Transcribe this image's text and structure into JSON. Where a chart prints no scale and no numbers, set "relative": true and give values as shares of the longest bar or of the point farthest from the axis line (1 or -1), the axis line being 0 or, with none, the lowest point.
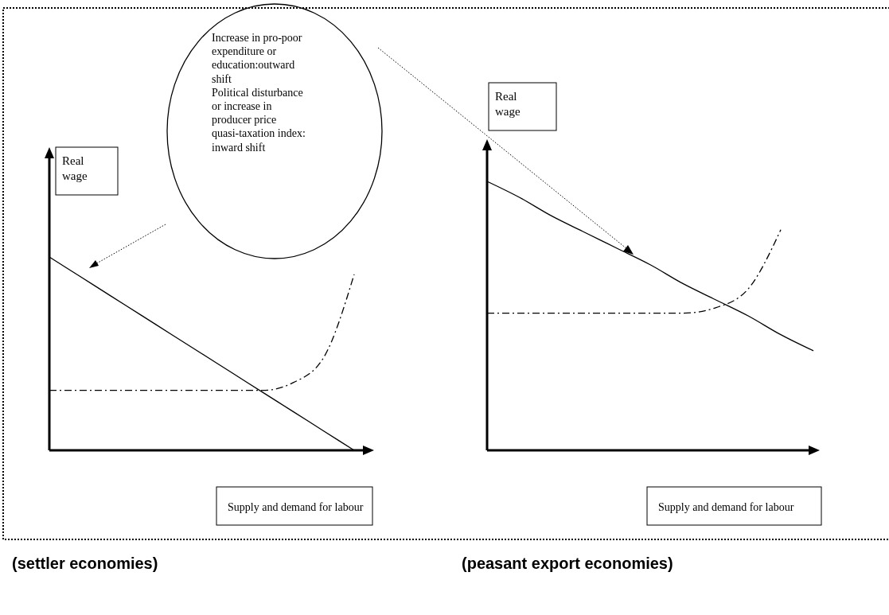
{
  "chart_data": [
    {
      "type": "line",
      "title": "(settler economies)",
      "xlabel": "Supply and demand for labour",
      "ylabel": "Real wage",
      "relative": true,
      "categories": [
        null,
        null,
        null,
        null,
        null,
        null,
        null,
        null,
        null,
        null,
        null
      ],
      "series": [
        {
          "color": "#000000",
          "line_style": "solid",
          "values": [
            1,
            0.9,
            0.8,
            0.7,
            0.6,
            0.5,
            0.4,
            0.3,
            0.2,
            0.1,
            0
          ]
        },
        {
          "color": "#000000",
          "line_style": "dashed",
          "values": [
            0.31,
            0.31,
            0.31,
            0.31,
            0.31,
            0.31,
            0.31,
            0.31,
            0.35,
            0.48,
            0.91
          ]
        }
      ],
      "annotations": [
        "Increase in pro-poor expenditure or education:outward shift",
        "Political disturbance or increase  in producer price quasi-taxation index: inward shift"
      ]
    },
    {
      "type": "line",
      "title": "(peasant export economies)",
      "xlabel": "Supply and demand for labour",
      "ylabel": "Real wage",
      "relative": true,
      "categories": [
        null,
        null,
        null,
        null,
        null,
        null,
        null,
        null,
        null,
        null,
        null
      ],
      "series": [
        {
          "color": "#000000",
          "line_style": "solid",
          "values": [
            1,
            0.94,
            0.87,
            0.81,
            0.75,
            0.69,
            0.62,
            0.56,
            0.5,
            0.43,
            0.37
          ]
        },
        {
          "color": "#000000",
          "line_style": "dashed",
          "values": [
            0.51,
            0.51,
            0.51,
            0.51,
            0.51,
            0.51,
            0.51,
            0.53,
            0.6,
            0.82,
            null
          ]
        }
      ]
    }
  ]
}
